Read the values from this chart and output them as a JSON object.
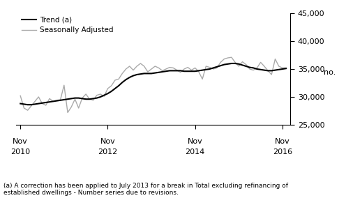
{
  "trend": [
    28800,
    28700,
    28600,
    28600,
    28700,
    28800,
    28900,
    29000,
    29100,
    29200,
    29300,
    29400,
    29500,
    29600,
    29700,
    29800,
    29800,
    29700,
    29600,
    29600,
    29700,
    29800,
    30000,
    30300,
    30600,
    31000,
    31500,
    32000,
    32600,
    33100,
    33500,
    33800,
    34000,
    34100,
    34200,
    34200,
    34200,
    34300,
    34400,
    34500,
    34600,
    34700,
    34700,
    34700,
    34700,
    34600,
    34600,
    34600,
    34600,
    34700,
    34800,
    34900,
    35000,
    35200,
    35400,
    35600,
    35800,
    35900,
    36000,
    36000,
    35900,
    35700,
    35500,
    35300,
    35200,
    35000,
    34900,
    34800,
    34700,
    34700,
    34800,
    34900,
    35000,
    35100
  ],
  "seasonal": [
    30200,
    28000,
    27600,
    28400,
    29200,
    30000,
    28800,
    28500,
    29700,
    29200,
    29400,
    29500,
    32100,
    27200,
    28200,
    29600,
    28000,
    29800,
    30500,
    29600,
    29400,
    30300,
    30500,
    30100,
    31500,
    32000,
    33000,
    33200,
    34200,
    35000,
    35500,
    34800,
    35500,
    36000,
    35500,
    34500,
    35000,
    35500,
    35200,
    34700,
    35000,
    35300,
    35200,
    34800,
    34400,
    35000,
    35300,
    34800,
    35200,
    34500,
    33200,
    35500,
    35300,
    35000,
    35200,
    36200,
    36800,
    37000,
    37100,
    36200,
    35500,
    36300,
    35800,
    35000,
    34800,
    35200,
    36200,
    35500,
    34700,
    34000,
    36800,
    35500,
    35200,
    35200
  ],
  "x_start": 2010.833,
  "x_end": 2016.917,
  "ylim": [
    25000,
    45000
  ],
  "yticks": [
    25000,
    30000,
    35000,
    40000,
    45000
  ],
  "xtick_positions": [
    2010.833,
    2012.833,
    2014.833,
    2016.833
  ],
  "xtick_labels_top": [
    "Nov",
    "Nov",
    "Nov",
    "Nov"
  ],
  "xtick_labels_bottom": [
    "2010",
    "2012",
    "2014",
    "2016"
  ],
  "ylabel": "no.",
  "trend_color": "#000000",
  "seasonal_color": "#aaaaaa",
  "trend_linewidth": 1.5,
  "seasonal_linewidth": 1.0,
  "footnote": "(a) A correction has been applied to July 2013 for a break in Total excluding refinancing of\nestablished dwellings - Number series due to revisions.",
  "legend_trend": "Trend (a)",
  "legend_seasonal": "Seasonally Adjusted"
}
